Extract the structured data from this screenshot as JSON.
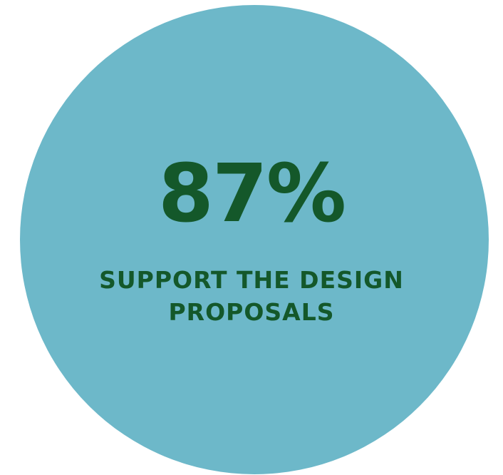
{
  "colors": {
    "circle": "#6db8c9",
    "text": "#14582a"
  },
  "stat": {
    "value": "87%",
    "caption": "SUPPORT THE DESIGN PROPOSALS"
  }
}
